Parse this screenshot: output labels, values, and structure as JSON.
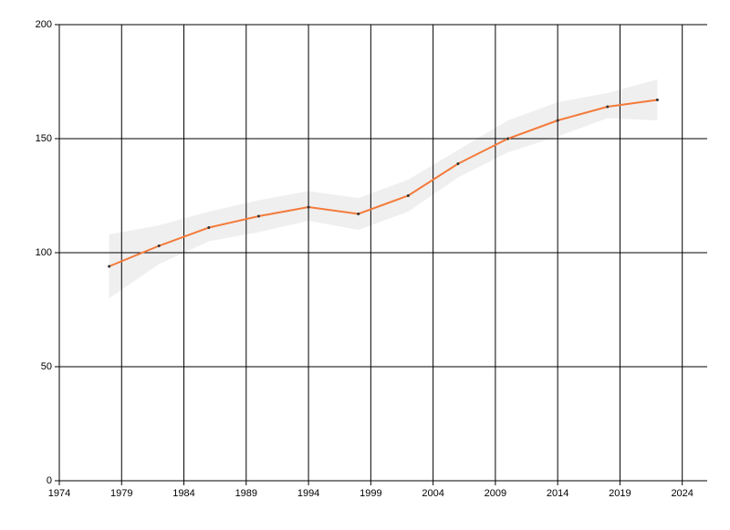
{
  "chart_data": {
    "type": "line",
    "x": [
      1978,
      1982,
      1986,
      1990,
      1994,
      1998,
      2002,
      2006,
      2010,
      2014,
      2018,
      2022
    ],
    "series": [
      {
        "color": "#f47a3a",
        "values": [
          94,
          103,
          111,
          116,
          120,
          117,
          125,
          139,
          150,
          158,
          164,
          167
        ]
      }
    ],
    "band": {
      "color": "#efefef",
      "upper": [
        108,
        112,
        118,
        123,
        127,
        124,
        132,
        145,
        158,
        166,
        170,
        176
      ],
      "lower": [
        80,
        95,
        105,
        109,
        114,
        110,
        118,
        133,
        144,
        151,
        159,
        158
      ]
    },
    "xlim": [
      1974,
      2026
    ],
    "xticks": [
      1974,
      1979,
      1984,
      1989,
      1994,
      1999,
      2004,
      2009,
      2014,
      2019,
      2024
    ],
    "ylim": [
      0,
      200
    ],
    "yticks": [
      0,
      50,
      100,
      150,
      200
    ],
    "grid": true
  }
}
